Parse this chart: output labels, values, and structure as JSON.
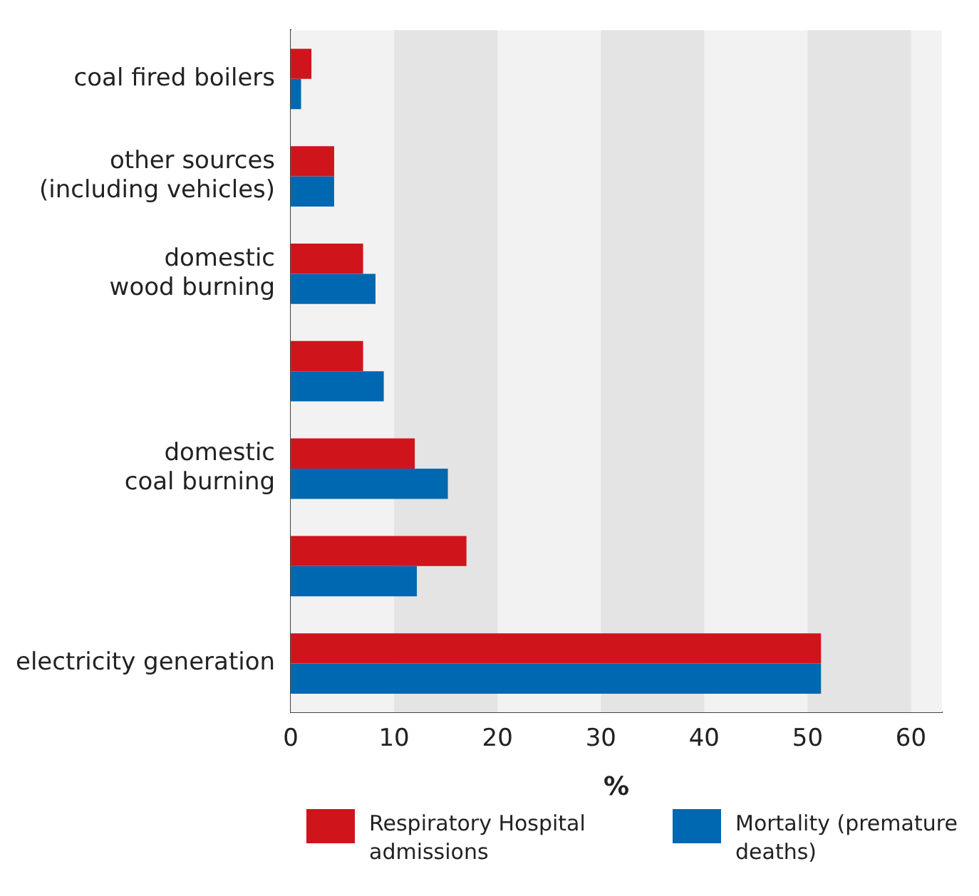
{
  "chart_data": {
    "type": "bar",
    "orientation": "horizontal",
    "xlabel": "%",
    "categories": [
      "coal fired boilers",
      "other sources\n(including vehicles)",
      "domestic\nwood burning",
      null,
      "domestic\ncoal burning",
      null,
      "electricity generation"
    ],
    "series": [
      {
        "name": "Respiratory Hospital admissions",
        "color": "#d0141c",
        "values": [
          2,
          4.2,
          7,
          7,
          12,
          17,
          51.3
        ]
      },
      {
        "name": "Mortality (premature deaths)",
        "color": "#0067b1",
        "values": [
          1,
          4.2,
          8.2,
          9,
          15.2,
          12.2,
          51.3
        ]
      }
    ],
    "xlim": [
      0,
      63
    ],
    "xticks": [
      0,
      10,
      20,
      30,
      40,
      50,
      60
    ],
    "bands": [
      {
        "axis": "x",
        "from": 10,
        "to": 20,
        "color": "#e4e4e4"
      },
      {
        "axis": "x",
        "from": 30,
        "to": 40,
        "color": "#e4e4e4"
      },
      {
        "axis": "x",
        "from": 50,
        "to": 60,
        "color": "#e4e4e4"
      }
    ],
    "legend": "bottom",
    "grid": false
  }
}
